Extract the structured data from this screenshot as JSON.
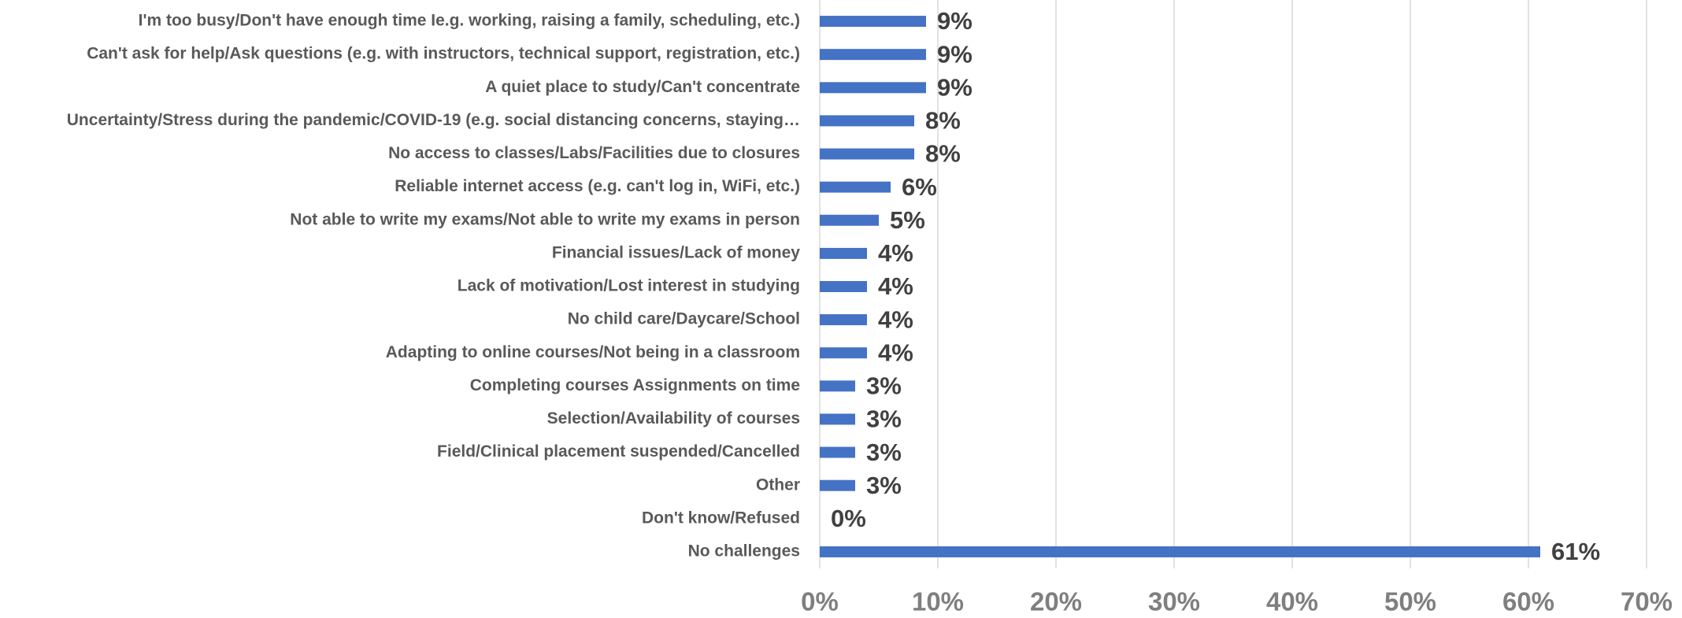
{
  "chart_data": {
    "type": "bar",
    "orientation": "horizontal",
    "color": "#4472c4",
    "grid": true,
    "categories": [
      "I'm too busy/Don't have enough time Ie.g. working, raising a family, scheduling, etc.)",
      "Can't ask for help/Ask questions (e.g. with instructors, technical support, registration, etc.)",
      "A quiet place to study/Can't concentrate",
      "Uncertainty/Stress during the pandemic/COVID-19 (e.g. social distancing concerns, staying…",
      "No access to classes/Labs/Facilities due to closures",
      "Reliable internet access (e.g. can't log in, WiFi, etc.)",
      "Not able to write my exams/Not able to write my exams in person",
      "Financial issues/Lack of money",
      "Lack of motivation/Lost interest in studying",
      "No child care/Daycare/School",
      "Adapting to online courses/Not being in a classroom",
      "Completing courses Assignments on time",
      "Selection/Availability of courses",
      "Field/Clinical placement suspended/Cancelled",
      "Other",
      "Don't know/Refused",
      "No challenges"
    ],
    "values": [
      9,
      9,
      9,
      8,
      8,
      6,
      5,
      4,
      4,
      4,
      4,
      3,
      3,
      3,
      3,
      0,
      61
    ],
    "value_labels": [
      "9%",
      "9%",
      "9%",
      "8%",
      "8%",
      "6%",
      "5%",
      "4%",
      "4%",
      "4%",
      "4%",
      "3%",
      "3%",
      "3%",
      "3%",
      "0%",
      "61%"
    ],
    "xlim": [
      0,
      70
    ],
    "xticks": [
      {
        "value": 0,
        "label": "0%"
      },
      {
        "value": 10,
        "label": "10%"
      },
      {
        "value": 20,
        "label": "20%"
      },
      {
        "value": 30,
        "label": "30%"
      },
      {
        "value": 40,
        "label": "40%"
      },
      {
        "value": 50,
        "label": "50%"
      },
      {
        "value": 60,
        "label": "60%"
      },
      {
        "value": 70,
        "label": "70%"
      }
    ]
  }
}
